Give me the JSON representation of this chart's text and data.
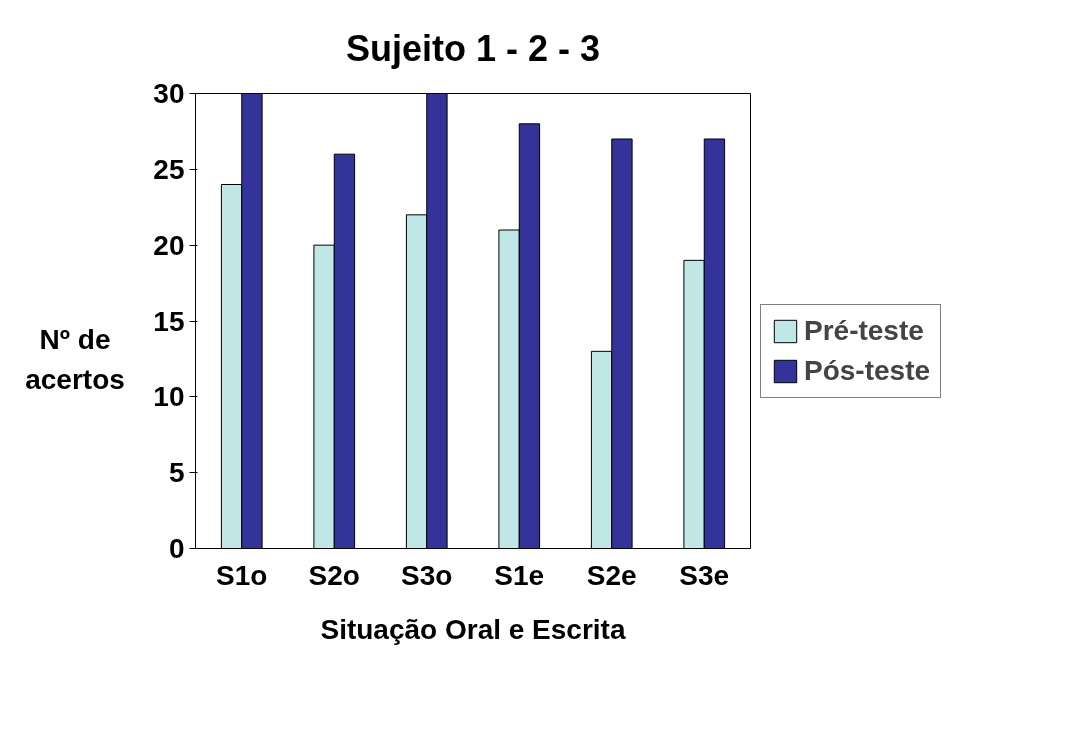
{
  "chart_data": {
    "type": "bar",
    "title": "Sujeito 1 - 2 - 3",
    "xlabel": "Situação Oral e Escrita",
    "ylabel": "Nº de acertos",
    "categories": [
      "S1o",
      "S2o",
      "S3o",
      "S1e",
      "S2e",
      "S3e"
    ],
    "series": [
      {
        "name": "Pré-teste",
        "color": "#c0e6e6",
        "values": [
          24,
          20,
          22,
          21,
          13,
          19
        ]
      },
      {
        "name": "Pós-teste",
        "color": "#333399",
        "values": [
          30,
          26,
          30,
          28,
          27,
          27
        ]
      }
    ],
    "ylim": [
      0,
      30
    ],
    "yticks": [
      0,
      5,
      10,
      15,
      20,
      25,
      30
    ],
    "legend": "right"
  }
}
